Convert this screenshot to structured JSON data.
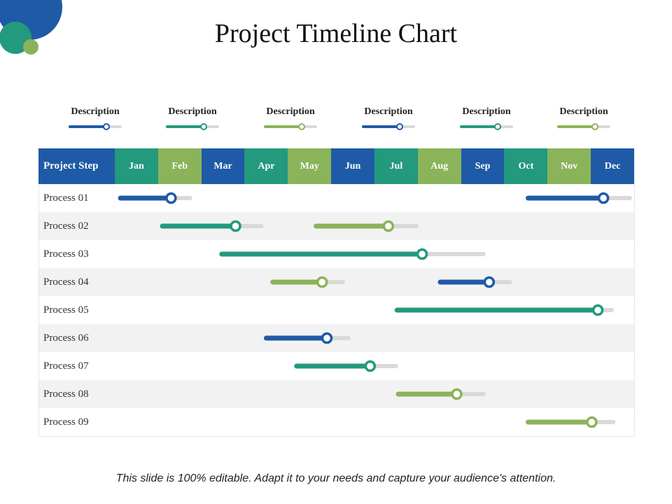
{
  "title": "Project Timeline Chart",
  "footer": "This slide is 100% editable. Adapt it to your needs and capture your audience's attention.",
  "colors": {
    "blue": "#1f5aa6",
    "teal": "#23997e",
    "green": "#8bb35a",
    "track": "#d9d9d9",
    "row_alt": "#f2f2f2"
  },
  "legend": [
    {
      "label": "Description",
      "color": "blue"
    },
    {
      "label": "Description",
      "color": "teal"
    },
    {
      "label": "Description",
      "color": "green"
    },
    {
      "label": "Description",
      "color": "blue"
    },
    {
      "label": "Description",
      "color": "teal"
    },
    {
      "label": "Description",
      "color": "green"
    }
  ],
  "chart_data": {
    "type": "table",
    "title": "Project Timeline Chart",
    "header": "Project Step",
    "months": [
      "Jan",
      "Feb",
      "Mar",
      "Apr",
      "May",
      "Jun",
      "Jul",
      "Aug",
      "Sep",
      "Oct",
      "Nov",
      "Dec"
    ],
    "month_colors": [
      "teal",
      "green",
      "blue",
      "teal",
      "green",
      "blue",
      "teal",
      "green",
      "blue",
      "teal",
      "green",
      "blue"
    ],
    "rows": [
      {
        "label": "Process 01",
        "bars": [
          {
            "start": 0.13,
            "knob": 1.3,
            "end": 1.74,
            "color": "blue"
          },
          {
            "start": 9.55,
            "knob": 11.29,
            "end": 11.9,
            "color": "blue"
          }
        ]
      },
      {
        "label": "Process 02",
        "bars": [
          {
            "start": 1.1,
            "knob": 2.79,
            "end": 3.39,
            "color": "teal"
          },
          {
            "start": 4.65,
            "knob": 6.32,
            "end": 6.97,
            "color": "green"
          }
        ]
      },
      {
        "label": "Process 03",
        "bars": [
          {
            "start": 2.47,
            "knob": 7.1,
            "end": 8.52,
            "color": "teal"
          }
        ]
      },
      {
        "label": "Process 04",
        "bars": [
          {
            "start": 3.65,
            "knob": 4.79,
            "end": 5.27,
            "color": "green"
          },
          {
            "start": 7.52,
            "knob": 8.65,
            "end": 9.13,
            "color": "blue"
          }
        ]
      },
      {
        "label": "Process 05",
        "bars": [
          {
            "start": 6.52,
            "knob": 11.16,
            "end": 11.48,
            "color": "teal"
          }
        ]
      },
      {
        "label": "Process 06",
        "bars": [
          {
            "start": 3.5,
            "knob": 4.9,
            "end": 5.4,
            "color": "blue"
          }
        ]
      },
      {
        "label": "Process 07",
        "bars": [
          {
            "start": 4.2,
            "knob": 5.9,
            "end": 6.5,
            "color": "teal"
          }
        ]
      },
      {
        "label": "Process 08",
        "bars": [
          {
            "start": 6.55,
            "knob": 7.9,
            "end": 8.52,
            "color": "green"
          }
        ]
      },
      {
        "label": "Process 09",
        "bars": [
          {
            "start": 9.55,
            "knob": 11.02,
            "end": 11.52,
            "color": "green"
          }
        ]
      }
    ]
  }
}
